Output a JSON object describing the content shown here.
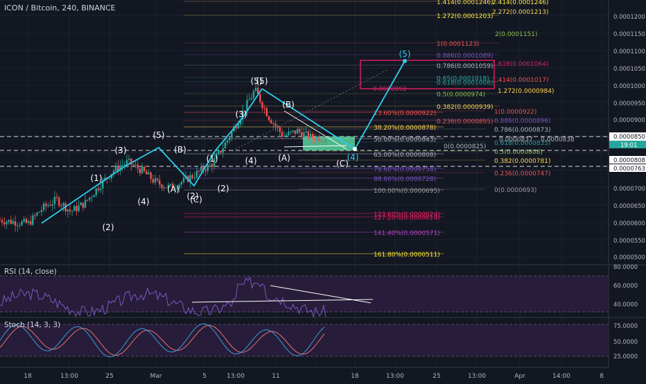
{
  "title": "ICON / Bitcoin, 240, BINANCE",
  "colors": {
    "bg": "#131722",
    "up": "#26a69a",
    "down": "#ef5350",
    "wave": "#2bd0f0",
    "grid": "#1e2230",
    "text": "#d1d4dc",
    "axisText": "#b2b5be",
    "target": "#e91e63",
    "zone": "#5de0a8",
    "rsiBand": "#2a1d3c",
    "rsiLine": "#7e57c2",
    "stochK": "#3b9edb",
    "stochD": "#e57373"
  },
  "price_axis": {
    "ticks": [
      "0.0001200",
      "0.0001150",
      "0.0001100",
      "0.0001050",
      "0.0001000",
      "0.0000950",
      "0.0000900",
      "0.0000850",
      "0.0000808",
      "0.0000763",
      "0.0000700",
      "0.0000650",
      "0.0000600",
      "0.0000550",
      "0.0000500"
    ],
    "last_price": "0.0000850",
    "countdown": "19:01",
    "marker_a": "0.0000808",
    "marker_b": "0.0000763"
  },
  "time_axis": {
    "labels": [
      "18",
      "13:00",
      "25",
      "Mar",
      "5",
      "13:00",
      "11",
      "18",
      "13:00",
      "25",
      "13:00",
      "Apr",
      "14:00",
      "8"
    ]
  },
  "rsi": {
    "label": "RSI (14, close)",
    "ticks": [
      "80.0000",
      "60.0000",
      "40.0000"
    ]
  },
  "stoch": {
    "label": "Stoch (14, 3, 3)",
    "ticks": [
      "75.0000",
      "50.0000",
      "25.0000"
    ]
  },
  "waves": [
    "(1)",
    "(2)",
    "(3)",
    "(4)",
    "(5)",
    "(A)",
    "(B)",
    "(C)",
    "(1)",
    "(2)",
    "(2)",
    "(3)",
    "(4)",
    "(5)",
    "(5)",
    "(A)",
    "(B)",
    "(C)",
    "(4)",
    "(5)"
  ],
  "fib_retracement": [
    "13.60%(0.0000922)",
    "38.20%(0.0000878)",
    "50.00%(0.0000843)",
    "65.00%(0.0000808)",
    "78.60%(0.0000758)",
    "88.60%(0.0000728)",
    "100.00%(0.0000695)",
    "123.60%(0.0000624)",
    "127.20%(0.0000614)",
    "141.40%(0.0000571)",
    "161.80%(0.0000511)"
  ],
  "fib_retracement_2": [
    "0.236(0.0000895)",
    "0.382(0.0000939)",
    "0.5(0.0000974)",
    "0.618(0.0001008)",
    "0.65(0.0001018)",
    "0.786(0.0001059)",
    "0.886(0.0001089)",
    "1(0.0001123)",
    "1.272(0.0001203)",
    "1.414(0.0001246)"
  ],
  "fib_ext_right": [
    "0.0000992",
    "1.272(0.0000984)",
    "1.414(0.0001017)",
    "1.618(0.0001064)",
    "2(0.0001151)",
    "2.272(0.0001213)",
    "2.414(0.0001246)"
  ],
  "fib_retracement_3": [
    "1(0.0000922)",
    "0.886(0.0000896)",
    "0.786(0.0000873)",
    "0.618(0.0000835)",
    "0.5(0.0000808)",
    "0.382(0.0000781)",
    "0.236(0.0000747)",
    "0(0.0000693)"
  ],
  "fib_misc": "0(0.0000825)",
  "trendline_labels": [
    "0.0000837",
    "0.0000838"
  ],
  "chart_data": {
    "type": "candlestick",
    "title": "ICON / Bitcoin, 240, BINANCE",
    "interval": "240",
    "y_range": [
      5e-05,
      0.000122
    ],
    "ohlc_close_path": [
      [
        "Feb 16",
        6.1e-05
      ],
      [
        "Feb 18",
        6.05e-05
      ],
      [
        "Feb 20",
        6e-05
      ],
      [
        "Feb 22",
        6.45e-05
      ],
      [
        "Feb 24",
        6.7e-05
      ],
      [
        "Feb 25",
        6.35e-05
      ],
      [
        "Feb 26",
        6.6e-05
      ],
      [
        "Feb 27",
        7.1e-05
      ],
      [
        "Feb 28",
        7.55e-05
      ],
      [
        "Mar 1",
        7.8e-05
      ],
      [
        "Mar 2",
        7.55e-05
      ],
      [
        "Mar 3",
        7.2e-05
      ],
      [
        "Mar 4",
        7.05e-05
      ],
      [
        "Mar 5",
        7.25e-05
      ],
      [
        "Mar 6",
        7.5e-05
      ],
      [
        "Mar 7",
        7.75e-05
      ],
      [
        "Mar 8",
        8.4e-05
      ],
      [
        "Mar 9",
        9.15e-05
      ],
      [
        "Mar 10",
        9.9e-05
      ],
      [
        "Mar 11",
        9.1e-05
      ],
      [
        "Mar 12",
        8.55e-05
      ],
      [
        "Mar 13",
        8.7e-05
      ],
      [
        "Mar 14",
        8.5e-05
      ],
      [
        "Mar 15",
        8.5e-05
      ]
    ],
    "projection": [
      [
        "Mar 18",
        8.15e-05
      ],
      [
        "Mar 21",
        0.000107
      ]
    ],
    "rsi_range": [
      30,
      85
    ],
    "stoch_range": [
      10,
      90
    ]
  }
}
